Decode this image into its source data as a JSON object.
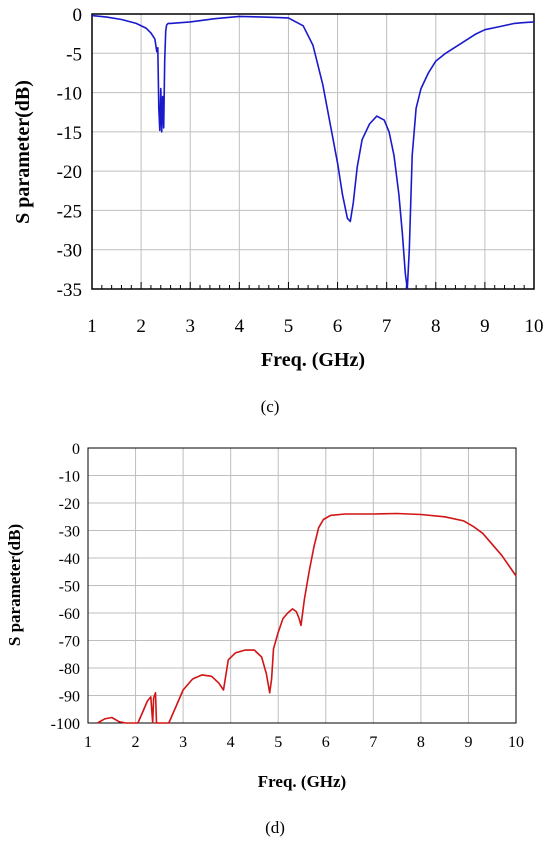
{
  "chart_data": [
    {
      "type": "line",
      "panel_label": "(c)",
      "xlabel": "Freq. (GHz)",
      "ylabel": "S parameter(dB)",
      "xlim": [
        1,
        10
      ],
      "ylim": [
        -35,
        0
      ],
      "xticks": [
        "1",
        "2",
        "3",
        "4",
        "5",
        "6",
        "7",
        "8",
        "9",
        "10"
      ],
      "yticks": [
        "0",
        "-5",
        "-10",
        "-15",
        "-20",
        "-25",
        "-30",
        "-35"
      ],
      "grid": true,
      "colors": {
        "series": "#1a1acc",
        "grid": "#bfbfbf"
      },
      "series": [
        {
          "x": [
            1.0,
            1.3,
            1.6,
            1.9,
            2.1,
            2.2,
            2.28,
            2.32,
            2.34,
            2.36,
            2.38,
            2.4,
            2.42,
            2.44,
            2.46,
            2.48,
            2.5,
            2.52,
            2.55,
            2.6,
            3.0,
            3.5,
            4.0,
            4.5,
            5.0,
            5.3,
            5.5,
            5.7,
            5.85,
            6.0,
            6.1,
            6.2,
            6.26,
            6.32,
            6.4,
            6.5,
            6.65,
            6.8,
            6.95,
            7.05,
            7.15,
            7.25,
            7.32,
            7.38,
            7.42,
            7.46,
            7.52,
            7.6,
            7.7,
            7.85,
            8.0,
            8.2,
            8.5,
            8.8,
            9.0,
            9.3,
            9.6,
            9.8,
            10.0
          ],
          "y": [
            -0.2,
            -0.4,
            -0.7,
            -1.2,
            -1.8,
            -2.4,
            -3.2,
            -4.8,
            -4.3,
            -12.0,
            -14.8,
            -9.5,
            -15.0,
            -10.5,
            -14.5,
            -6.0,
            -2.2,
            -1.4,
            -1.2,
            -1.2,
            -1.0,
            -0.6,
            -0.3,
            -0.4,
            -0.5,
            -1.5,
            -4.0,
            -9.0,
            -14.0,
            -19.0,
            -23.0,
            -26.0,
            -26.4,
            -24.0,
            -19.5,
            -16.0,
            -14.0,
            -13.0,
            -13.5,
            -15.0,
            -18.0,
            -23.0,
            -28.0,
            -33.0,
            -35.0,
            -30.0,
            -18.0,
            -12.0,
            -9.5,
            -7.5,
            -6.0,
            -5.0,
            -3.8,
            -2.6,
            -2.0,
            -1.6,
            -1.2,
            -1.1,
            -1.0
          ]
        }
      ]
    },
    {
      "type": "line",
      "panel_label": "(d)",
      "xlabel": "Freq. (GHz)",
      "ylabel": "S parameter(dB)",
      "xlim": [
        1,
        10
      ],
      "ylim": [
        -100,
        0
      ],
      "xticks": [
        "1",
        "2",
        "3",
        "4",
        "5",
        "6",
        "7",
        "8",
        "9",
        "10"
      ],
      "yticks": [
        "0",
        "-10",
        "-20",
        "-30",
        "-40",
        "-50",
        "-60",
        "-70",
        "-80",
        "-90",
        "-100"
      ],
      "grid": true,
      "colors": {
        "series": "#d11414",
        "grid": "#bfbfbf"
      },
      "series": [
        {
          "x": [
            1.2,
            1.35,
            1.5,
            1.65,
            1.8,
            2.05,
            2.15,
            2.25,
            2.32,
            2.36,
            2.38,
            2.42,
            2.44,
            2.5,
            2.7,
            2.85,
            3.0,
            3.2,
            3.4,
            3.6,
            3.75,
            3.85,
            3.95,
            4.1,
            4.3,
            4.5,
            4.65,
            4.75,
            4.82,
            4.86,
            4.9,
            5.0,
            5.1,
            5.2,
            5.3,
            5.38,
            5.44,
            5.48,
            5.55,
            5.65,
            5.75,
            5.85,
            5.95,
            6.1,
            6.4,
            7.0,
            7.5,
            8.0,
            8.5,
            8.9,
            9.1,
            9.3,
            9.5,
            9.7,
            9.9,
            10.0
          ],
          "y": [
            -100,
            -98.5,
            -98.0,
            -99.5,
            -100,
            -100,
            -96.0,
            -92.0,
            -90.5,
            -100,
            -91.0,
            -89.0,
            -100,
            -100,
            -100,
            -94.0,
            -88.0,
            -84.0,
            -82.5,
            -83.0,
            -85.5,
            -88.0,
            -77.0,
            -74.5,
            -73.5,
            -73.5,
            -76.0,
            -82.0,
            -89.0,
            -84.0,
            -73.0,
            -67.0,
            -62.0,
            -60.0,
            -58.5,
            -59.5,
            -62.0,
            -64.5,
            -55.0,
            -45.0,
            -36.0,
            -29.0,
            -26.0,
            -24.5,
            -24.0,
            -24.0,
            -23.8,
            -24.2,
            -25.0,
            -26.5,
            -28.5,
            -31.0,
            -35.0,
            -39.0,
            -44.0,
            -46.5
          ]
        }
      ]
    }
  ]
}
